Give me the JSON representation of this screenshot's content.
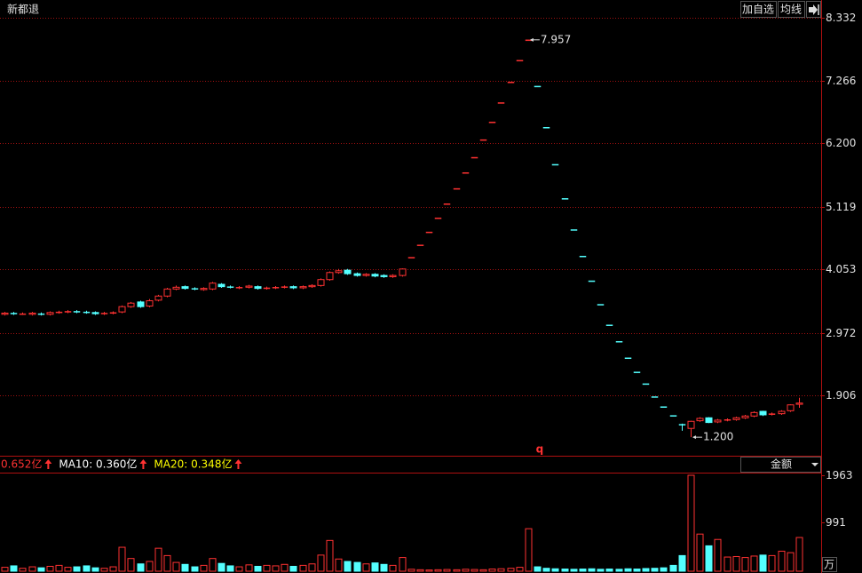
{
  "header": {
    "title": "新都退",
    "buttons": [
      "加自选",
      "均线"
    ]
  },
  "chart_data": [
    {
      "type": "candlestick",
      "up_color": "#ff3232",
      "down_color": "#54ffff",
      "grid": true,
      "ylim": [
        0.9,
        8.332
      ],
      "yticks": [
        8.332,
        7.266,
        {
          "value": 6.2,
          "label": "6.200"
        },
        5.119,
        4.053,
        2.972,
        1.906
      ],
      "high_label": "7.957",
      "low_label": "1.200",
      "mark_text": "q",
      "open": [
        3.29,
        3.31,
        3.3,
        3.29,
        3.3,
        3.29,
        3.32,
        3.33,
        3.34,
        3.33,
        3.32,
        3.3,
        3.31,
        3.33,
        3.42,
        3.5,
        3.43,
        3.53,
        3.6,
        3.72,
        3.76,
        3.73,
        3.71,
        3.72,
        3.8,
        3.76,
        3.74,
        3.75,
        3.76,
        3.73,
        3.74,
        3.75,
        3.76,
        3.74,
        3.76,
        3.78,
        3.88,
        4.0,
        4.04,
        3.98,
        3.95,
        3.97,
        3.95,
        3.93,
        3.95,
        4.26,
        4.47,
        4.69,
        4.93,
        5.17,
        5.43,
        5.7,
        5.96,
        6.26,
        6.56,
        6.89,
        7.24,
        7.61,
        7.957,
        7.17,
        6.47,
        5.84,
        5.26,
        4.73,
        4.28,
        3.86,
        3.46,
        3.11,
        2.83,
        2.55,
        2.31,
        2.11,
        1.89,
        1.72,
        1.57,
        1.42,
        1.35,
        1.48,
        1.53,
        1.46,
        1.49,
        1.5,
        1.53,
        1.56,
        1.64,
        1.59,
        1.6,
        1.65,
        1.76
      ],
      "high": [
        3.33,
        3.33,
        3.32,
        3.33,
        3.32,
        3.34,
        3.35,
        3.36,
        3.36,
        3.35,
        3.34,
        3.33,
        3.34,
        3.44,
        3.5,
        3.52,
        3.55,
        3.62,
        3.74,
        3.78,
        3.78,
        3.75,
        3.75,
        3.84,
        3.82,
        3.78,
        3.77,
        3.79,
        3.78,
        3.76,
        3.77,
        3.78,
        3.78,
        3.78,
        3.8,
        3.9,
        4.02,
        4.06,
        4.06,
        4.0,
        3.99,
        3.99,
        3.97,
        3.97,
        4.07,
        4.26,
        4.47,
        4.69,
        4.93,
        5.17,
        5.43,
        5.7,
        5.96,
        6.26,
        6.56,
        6.89,
        7.24,
        7.61,
        7.957,
        7.17,
        6.47,
        5.84,
        5.26,
        4.73,
        4.28,
        3.86,
        3.46,
        3.11,
        2.83,
        2.55,
        2.31,
        2.11,
        1.89,
        1.72,
        1.57,
        1.43,
        1.48,
        1.54,
        1.54,
        1.51,
        1.52,
        1.55,
        1.58,
        1.64,
        1.65,
        1.62,
        1.66,
        1.76,
        1.87
      ],
      "low": [
        3.27,
        3.28,
        3.28,
        3.27,
        3.27,
        3.27,
        3.3,
        3.31,
        3.31,
        3.3,
        3.28,
        3.28,
        3.29,
        3.31,
        3.4,
        3.4,
        3.41,
        3.51,
        3.58,
        3.7,
        3.71,
        3.7,
        3.69,
        3.7,
        3.74,
        3.73,
        3.72,
        3.73,
        3.71,
        3.71,
        3.72,
        3.73,
        3.72,
        3.72,
        3.74,
        3.76,
        3.86,
        3.98,
        3.96,
        3.93,
        3.93,
        3.92,
        3.91,
        3.91,
        3.93,
        4.26,
        4.47,
        4.69,
        4.93,
        5.17,
        5.43,
        5.7,
        5.96,
        6.26,
        6.56,
        6.89,
        7.24,
        7.61,
        7.957,
        7.17,
        6.47,
        5.84,
        5.26,
        4.73,
        4.28,
        3.86,
        3.46,
        3.11,
        2.83,
        2.55,
        2.31,
        2.11,
        1.89,
        1.72,
        1.57,
        1.31,
        1.2,
        1.46,
        1.44,
        1.44,
        1.47,
        1.48,
        1.51,
        1.54,
        1.56,
        1.57,
        1.58,
        1.63,
        1.7
      ],
      "close": [
        3.31,
        3.3,
        3.3,
        3.31,
        3.29,
        3.32,
        3.33,
        3.34,
        3.33,
        3.32,
        3.3,
        3.31,
        3.32,
        3.42,
        3.48,
        3.42,
        3.52,
        3.6,
        3.72,
        3.75,
        3.73,
        3.72,
        3.73,
        3.82,
        3.76,
        3.75,
        3.75,
        3.77,
        3.73,
        3.74,
        3.75,
        3.76,
        3.74,
        3.76,
        3.78,
        3.88,
        4.0,
        4.03,
        3.98,
        3.95,
        3.97,
        3.94,
        3.93,
        3.95,
        4.06,
        4.26,
        4.47,
        4.69,
        4.93,
        5.17,
        5.43,
        5.7,
        5.96,
        6.26,
        6.56,
        6.89,
        7.24,
        7.61,
        7.957,
        7.17,
        6.47,
        5.84,
        5.26,
        4.73,
        4.28,
        3.86,
        3.46,
        3.11,
        2.83,
        2.55,
        2.31,
        2.11,
        1.89,
        1.72,
        1.57,
        1.42,
        1.47,
        1.52,
        1.45,
        1.49,
        1.5,
        1.53,
        1.56,
        1.62,
        1.58,
        1.6,
        1.64,
        1.75,
        1.78
      ]
    },
    {
      "type": "bar",
      "unit": "万",
      "selector": "金额",
      "ylim": [
        0,
        1963
      ],
      "yticks": [
        991,
        1963
      ],
      "legend": [
        {
          "label": "0.652亿",
          "color": "#ff3232"
        },
        {
          "label": "MA10: 0.360亿",
          "color": "#ffffff"
        },
        {
          "label": "MA20: 0.348亿",
          "color": "#ffff00"
        }
      ],
      "values": [
        80,
        110,
        60,
        90,
        70,
        100,
        120,
        80,
        90,
        110,
        70,
        60,
        90,
        490,
        260,
        150,
        200,
        470,
        320,
        180,
        140,
        90,
        120,
        260,
        160,
        110,
        90,
        130,
        100,
        120,
        110,
        140,
        100,
        120,
        150,
        330,
        630,
        250,
        200,
        180,
        150,
        170,
        140,
        120,
        280,
        40,
        30,
        25,
        30,
        35,
        30,
        40,
        35,
        30,
        45,
        50,
        60,
        80,
        870,
        90,
        60,
        50,
        45,
        40,
        45,
        50,
        40,
        45,
        40,
        50,
        45,
        55,
        60,
        70,
        120,
        320,
        1963,
        760,
        520,
        650,
        290,
        300,
        280,
        310,
        330,
        320,
        410,
        380,
        690
      ]
    }
  ]
}
